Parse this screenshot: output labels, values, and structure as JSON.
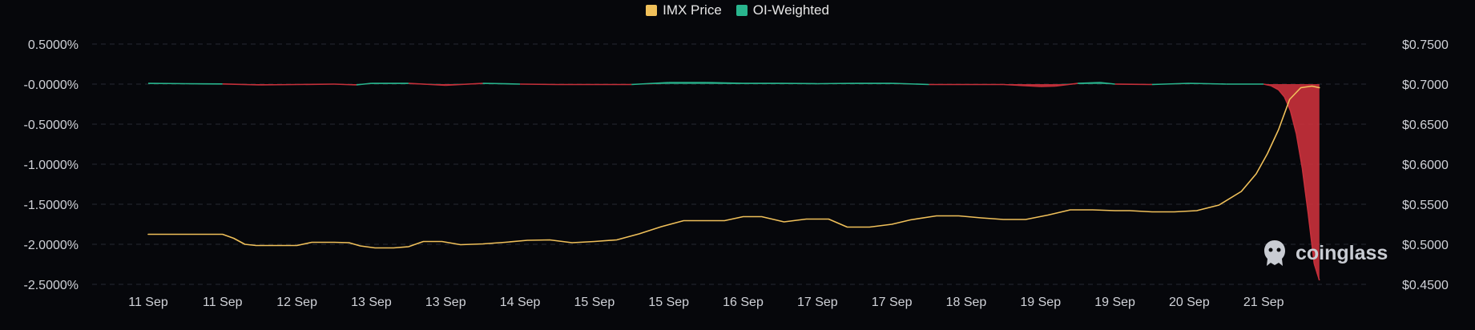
{
  "legend": {
    "price_label": "IMX Price",
    "oi_label": "OI-Weighted"
  },
  "watermark": {
    "text": "coinglass",
    "icon": "coinglass-logo-icon"
  },
  "colors": {
    "background": "#06070b",
    "price_line": "#f0c05a",
    "oi_positive": "#29b58e",
    "oi_negative": "#c6303b",
    "grid": "#262a33",
    "axis_text": "#d0d2d8"
  },
  "chart_data": {
    "type": "line",
    "x_tick_labels": [
      "11 Sep",
      "11 Sep",
      "12 Sep",
      "13 Sep",
      "13 Sep",
      "14 Sep",
      "15 Sep",
      "15 Sep",
      "16 Sep",
      "17 Sep",
      "17 Sep",
      "18 Sep",
      "19 Sep",
      "19 Sep",
      "20 Sep",
      "21 Sep"
    ],
    "y_left": {
      "ticks": [
        0.005,
        0,
        -0.005,
        -0.01,
        -0.015,
        -0.02,
        -0.025
      ],
      "tick_labels": [
        "0.5000%",
        "-0.0000%",
        "-0.5000%",
        "-1.0000%",
        "-1.5000%",
        "-2.0000%",
        "-2.5000%"
      ],
      "ylim": [
        -0.025,
        0.005
      ]
    },
    "y_right": {
      "ticks": [
        0.75,
        0.7,
        0.65,
        0.6,
        0.55,
        0.5,
        0.45
      ],
      "tick_labels": [
        "$0.7500",
        "$0.7000",
        "$0.6500",
        "$0.6000",
        "$0.5500",
        "$0.5000",
        "$0.4500"
      ],
      "ylim": [
        0.4375,
        0.75
      ]
    },
    "x_range": [
      0,
      16
    ],
    "grid": true,
    "legend_position": "top-center",
    "series": [
      {
        "name": "IMX Price",
        "axis": "right",
        "x": [
          0,
          1.0,
          1.15,
          1.3,
          1.45,
          1.6,
          1.75,
          2.0,
          2.2,
          2.5,
          2.7,
          2.85,
          3.05,
          3.3,
          3.5,
          3.7,
          3.95,
          4.2,
          4.5,
          4.8,
          5.1,
          5.4,
          5.7,
          6.0,
          6.3,
          6.6,
          6.9,
          7.2,
          7.45,
          7.75,
          8.0,
          8.25,
          8.55,
          8.85,
          9.15,
          9.4,
          9.7,
          10.0,
          10.25,
          10.6,
          10.9,
          11.2,
          11.5,
          11.8,
          12.1,
          12.4,
          12.7,
          13.0,
          13.2,
          13.5,
          13.8,
          14.1,
          14.4,
          14.7,
          14.9,
          15.05,
          15.2,
          15.35,
          15.5,
          15.65,
          15.75
        ],
        "y": [
          0.5125,
          0.5125,
          0.5075,
          0.5,
          0.4985,
          0.4985,
          0.4985,
          0.4985,
          0.5025,
          0.5025,
          0.502,
          0.498,
          0.4955,
          0.4955,
          0.497,
          0.5035,
          0.5035,
          0.4995,
          0.5005,
          0.5025,
          0.505,
          0.5055,
          0.502,
          0.5035,
          0.5055,
          0.513,
          0.522,
          0.5295,
          0.5295,
          0.5295,
          0.5345,
          0.5345,
          0.528,
          0.5315,
          0.5315,
          0.5215,
          0.5215,
          0.525,
          0.5305,
          0.5355,
          0.5355,
          0.533,
          0.531,
          0.531,
          0.5365,
          0.543,
          0.543,
          0.542,
          0.542,
          0.5405,
          0.5405,
          0.542,
          0.549,
          0.566,
          0.588,
          0.613,
          0.643,
          0.681,
          0.6955,
          0.6975,
          0.6955
        ]
      },
      {
        "name": "OI-Weighted",
        "axis": "left",
        "x": [
          0,
          0.5,
          1.0,
          1.5,
          2.0,
          2.5,
          2.8,
          3.0,
          3.5,
          4.0,
          4.5,
          5.0,
          5.5,
          6.0,
          6.5,
          7.0,
          7.5,
          8.0,
          8.5,
          9.0,
          9.5,
          10.0,
          10.5,
          11.0,
          11.5,
          12.0,
          12.2,
          12.5,
          12.8,
          13.0,
          13.5,
          14.0,
          14.5,
          15.0,
          15.1,
          15.2,
          15.28,
          15.36,
          15.44,
          15.52,
          15.6,
          15.68,
          15.75
        ],
        "y": [
          0.0001,
          5e-05,
          2e-05,
          -0.0001,
          -5e-05,
          0.0,
          -0.0001,
          0.0001,
          0.0001,
          -0.00015,
          0.0001,
          0.0,
          -5e-05,
          -5e-05,
          -5e-05,
          0.0002,
          0.0002,
          0.0001,
          0.0001,
          5e-05,
          0.0001,
          0.0001,
          -5e-05,
          -5e-05,
          -5e-05,
          -0.0003,
          -0.00025,
          0.0001,
          0.0002,
          0.0,
          -5e-05,
          0.0001,
          0.0,
          0.0,
          -0.0002,
          -0.0007,
          -0.0016,
          -0.0033,
          -0.0062,
          -0.0105,
          -0.0162,
          -0.0224,
          -0.0245
        ]
      }
    ]
  }
}
